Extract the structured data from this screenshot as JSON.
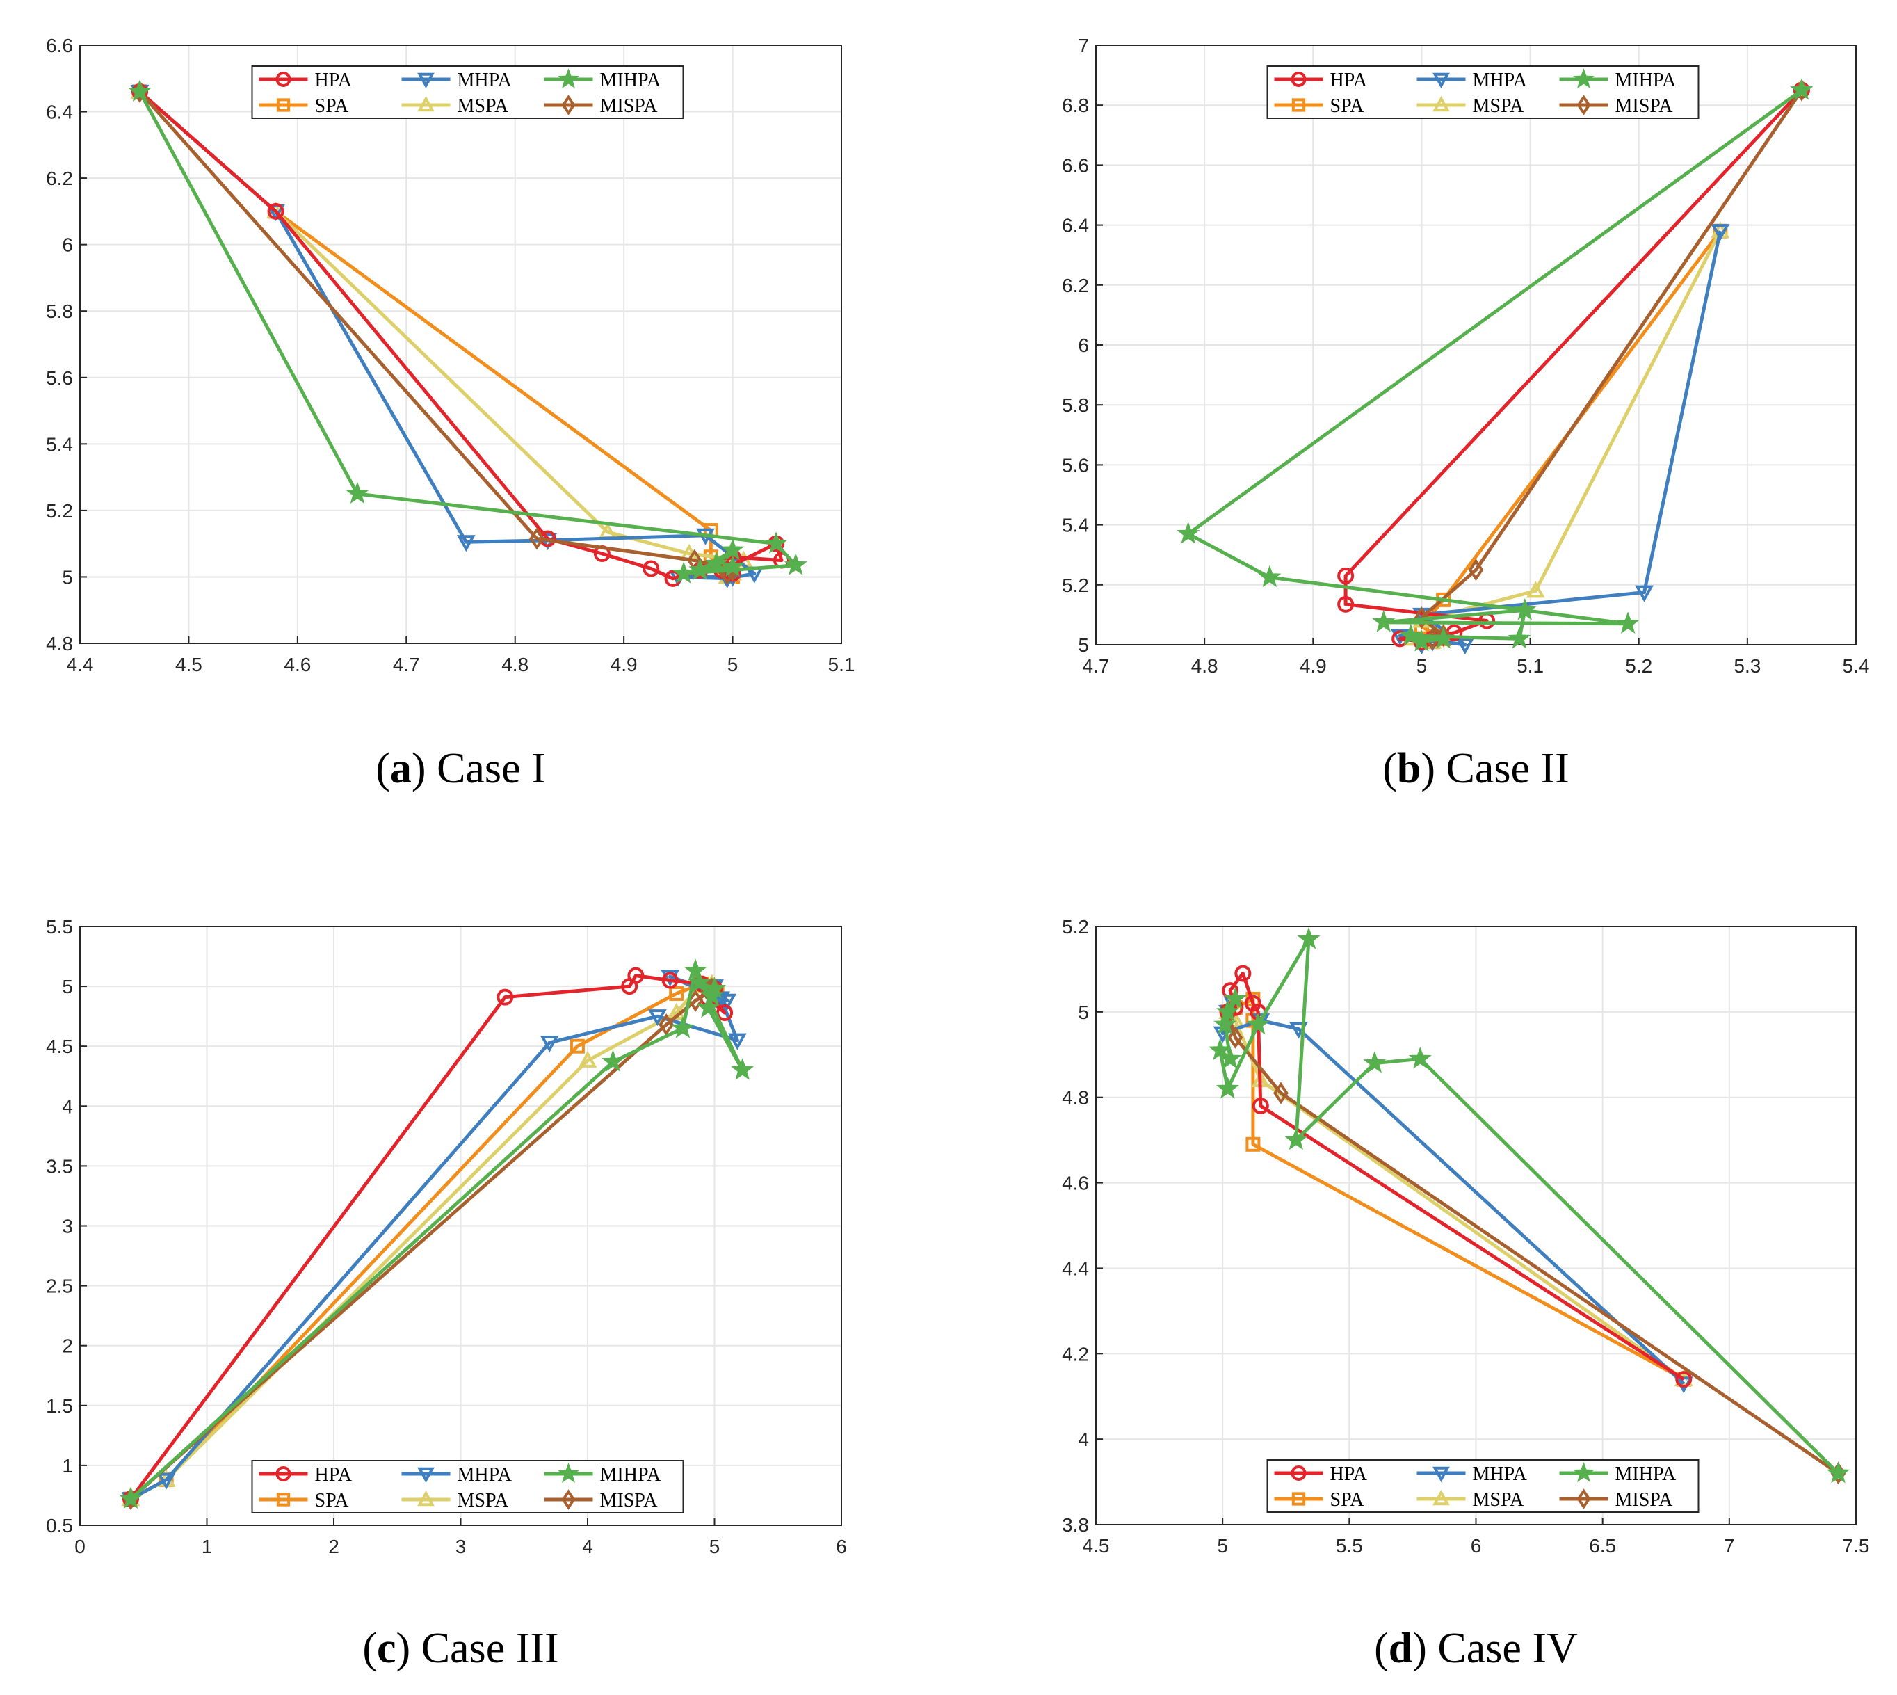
{
  "series_styles": [
    {
      "name": "HPA",
      "color": "#e3242b",
      "marker": "circle"
    },
    {
      "name": "SPA",
      "color": "#f28e1c",
      "marker": "square"
    },
    {
      "name": "MHPA",
      "color": "#3f7fbf",
      "marker": "triangle-down"
    },
    {
      "name": "MSPA",
      "color": "#ddd06a",
      "marker": "triangle-up"
    },
    {
      "name": "MIHPA",
      "color": "#55b04d",
      "marker": "star"
    },
    {
      "name": "MISPA",
      "color": "#a8602e",
      "marker": "diamond"
    }
  ],
  "chart_data": [
    {
      "type": "line",
      "caption": {
        "label": "a",
        "text": "Case I"
      },
      "xlim": [
        4.4,
        5.1
      ],
      "ylim": [
        4.8,
        6.6
      ],
      "xticks": [
        "4.4",
        "4.5",
        "4.6",
        "4.7",
        "4.8",
        "4.9",
        "5",
        "5.1"
      ],
      "yticks": [
        "4.8",
        "5",
        "5.2",
        "5.4",
        "5.6",
        "5.8",
        "6",
        "6.2",
        "6.4",
        "6.6"
      ],
      "grid": true,
      "legend": {
        "placement": "top-center",
        "entries": [
          "HPA",
          "MHPA",
          "MIHPA",
          "SPA",
          "MSPA",
          "MISPA"
        ]
      },
      "series": [
        {
          "name": "HPA",
          "x": [
            4.455,
            4.58,
            4.83,
            4.88,
            4.925,
            4.945,
            4.97,
            5.0,
            5.045,
            5.04,
            4.99,
            5.0
          ],
          "y": [
            6.46,
            6.1,
            5.115,
            5.07,
            5.025,
            4.995,
            5.02,
            5.06,
            5.05,
            5.1,
            5.02,
            5.01
          ]
        },
        {
          "name": "SPA",
          "x": [
            4.455,
            4.58,
            4.98,
            4.98,
            4.99,
            5.0,
            4.99,
            5.0
          ],
          "y": [
            6.46,
            6.1,
            5.14,
            5.06,
            5.03,
            5.0,
            5.02,
            5.01
          ]
        },
        {
          "name": "MHPA",
          "x": [
            4.455,
            4.58,
            4.755,
            4.83,
            4.975,
            5.02,
            4.995,
            4.95,
            5.0
          ],
          "y": [
            6.46,
            6.1,
            5.105,
            5.11,
            5.125,
            5.01,
            4.995,
            5.0,
            5.0
          ]
        },
        {
          "name": "MSPA",
          "x": [
            4.455,
            4.58,
            4.885,
            4.96,
            5.01,
            5.0,
            4.995,
            5.0
          ],
          "y": [
            6.46,
            6.1,
            5.135,
            5.07,
            5.05,
            5.02,
            5.0,
            5.01
          ]
        },
        {
          "name": "MIHPA",
          "x": [
            4.455,
            4.655,
            5.04,
            5.058,
            4.955,
            4.985,
            5.0,
            4.97,
            5.0
          ],
          "y": [
            6.46,
            5.25,
            5.1,
            5.035,
            5.01,
            5.04,
            5.08,
            5.02,
            5.03
          ]
        },
        {
          "name": "MISPA",
          "x": [
            4.455,
            4.82,
            4.965,
            4.99,
            5.0,
            4.995,
            5.0
          ],
          "y": [
            6.46,
            5.115,
            5.05,
            5.03,
            5.02,
            5.01,
            5.02
          ]
        }
      ]
    },
    {
      "type": "line",
      "caption": {
        "label": "b",
        "text": "Case II"
      },
      "xlim": [
        4.7,
        5.4
      ],
      "ylim": [
        5.0,
        7.0
      ],
      "xticks": [
        "4.7",
        "4.8",
        "4.9",
        "5",
        "5.1",
        "5.2",
        "5.3",
        "5.4"
      ],
      "yticks": [
        "5",
        "5.2",
        "5.4",
        "5.6",
        "5.8",
        "6",
        "6.2",
        "6.4",
        "6.6",
        "6.8",
        "7"
      ],
      "grid": true,
      "legend": {
        "placement": "top-center",
        "entries": [
          "HPA",
          "MHPA",
          "MIHPA",
          "SPA",
          "MSPA",
          "MISPA"
        ]
      },
      "series": [
        {
          "name": "HPA",
          "x": [
            5.35,
            4.93,
            4.93,
            5.06,
            5.03,
            4.98,
            5.0,
            5.01
          ],
          "y": [
            6.85,
            5.23,
            5.135,
            5.08,
            5.04,
            5.02,
            5.01,
            5.02
          ]
        },
        {
          "name": "SPA",
          "x": [
            5.275,
            5.02,
            5.0,
            5.02,
            5.01
          ],
          "y": [
            6.38,
            5.15,
            5.06,
            5.02,
            5.01
          ]
        },
        {
          "name": "MHPA",
          "x": [
            5.275,
            5.275,
            5.205,
            5.0,
            5.04,
            4.98,
            5.01,
            5.0
          ],
          "y": [
            6.38,
            6.38,
            5.175,
            5.1,
            5.0,
            5.03,
            5.01,
            5.0
          ]
        },
        {
          "name": "MSPA",
          "x": [
            5.275,
            5.105,
            5.0,
            5.02,
            4.99,
            5.01
          ],
          "y": [
            6.38,
            5.18,
            5.08,
            5.04,
            5.02,
            5.01
          ]
        },
        {
          "name": "MIHPA",
          "x": [
            5.35,
            4.785,
            4.86,
            5.19,
            4.965,
            5.095,
            5.09,
            4.99,
            5.0,
            5.02
          ],
          "y": [
            6.85,
            5.37,
            5.225,
            5.07,
            5.075,
            5.115,
            5.02,
            5.03,
            5.01,
            5.02
          ]
        },
        {
          "name": "MISPA",
          "x": [
            5.35,
            5.05,
            5.0,
            5.02,
            5.01
          ],
          "y": [
            6.85,
            5.25,
            5.09,
            5.03,
            5.02
          ]
        }
      ]
    },
    {
      "type": "line",
      "caption": {
        "label": "c",
        "text": "Case III"
      },
      "xlim": [
        0,
        6
      ],
      "ylim": [
        0.5,
        5.5
      ],
      "xticks": [
        "0",
        "1",
        "2",
        "3",
        "4",
        "5",
        "6"
      ],
      "yticks": [
        "0.5",
        "1",
        "1.5",
        "2",
        "2.5",
        "3",
        "3.5",
        "4",
        "4.5",
        "5",
        "5.5"
      ],
      "grid": true,
      "legend": {
        "placement": "bottom-center",
        "entries": [
          "HPA",
          "MHPA",
          "MIHPA",
          "SPA",
          "MSPA",
          "MISPA"
        ]
      },
      "series": [
        {
          "name": "HPA",
          "x": [
            0.4,
            3.35,
            4.33,
            4.38,
            4.65,
            4.9,
            5.08,
            4.95,
            5.0
          ],
          "y": [
            0.72,
            4.91,
            5.0,
            5.09,
            5.05,
            5.02,
            4.78,
            4.9,
            4.98
          ]
        },
        {
          "name": "SPA",
          "x": [
            0.4,
            0.68,
            3.92,
            4.7,
            4.9,
            5.02,
            4.97
          ],
          "y": [
            0.72,
            0.88,
            4.5,
            4.94,
            5.02,
            4.95,
            5.0
          ]
        },
        {
          "name": "MHPA",
          "x": [
            0.4,
            0.68,
            3.7,
            4.55,
            5.18,
            5.05,
            4.65,
            4.93,
            5.1,
            5.0
          ],
          "y": [
            0.72,
            0.88,
            4.53,
            4.75,
            4.55,
            4.9,
            5.08,
            4.98,
            4.88,
            5.0
          ]
        },
        {
          "name": "MSPA",
          "x": [
            0.4,
            0.68,
            4.0,
            4.7,
            4.88,
            5.0,
            4.98
          ],
          "y": [
            0.72,
            0.88,
            4.38,
            4.78,
            5.0,
            4.98,
            5.02
          ]
        },
        {
          "name": "MIHPA",
          "x": [
            0.4,
            4.2,
            4.75,
            4.85,
            5.22,
            4.95,
            5.0,
            4.88,
            4.98
          ],
          "y": [
            0.72,
            4.37,
            4.65,
            5.13,
            4.3,
            4.82,
            4.98,
            5.03,
            4.92
          ]
        },
        {
          "name": "MISPA",
          "x": [
            0.4,
            4.62,
            4.85,
            5.0,
            4.95,
            4.98
          ],
          "y": [
            0.72,
            4.68,
            4.88,
            4.98,
            4.96,
            4.98
          ]
        }
      ]
    },
    {
      "type": "line",
      "caption": {
        "label": "d",
        "text": "Case IV"
      },
      "xlim": [
        4.5,
        7.5
      ],
      "ylim": [
        3.8,
        5.2
      ],
      "xticks": [
        "4.5",
        "5",
        "5.5",
        "6",
        "6.5",
        "7",
        "7.5"
      ],
      "yticks": [
        "3.8",
        "4",
        "4.2",
        "4.4",
        "4.6",
        "4.8",
        "5",
        "5.2"
      ],
      "grid": true,
      "legend": {
        "placement": "bottom-center",
        "entries": [
          "HPA",
          "MHPA",
          "MIHPA",
          "SPA",
          "MSPA",
          "MISPA"
        ]
      },
      "series": [
        {
          "name": "HPA",
          "x": [
            6.82,
            5.15,
            5.14,
            5.12,
            5.08,
            5.03,
            5.05,
            5.02
          ],
          "y": [
            4.14,
            4.78,
            5.0,
            5.02,
            5.09,
            5.05,
            5.01,
            5.0
          ]
        },
        {
          "name": "SPA",
          "x": [
            6.82,
            5.12,
            5.12,
            5.12,
            5.05,
            5.02
          ],
          "y": [
            4.14,
            4.69,
            4.98,
            5.03,
            5.01,
            5.0
          ]
        },
        {
          "name": "MHPA",
          "x": [
            6.82,
            5.3,
            5.15,
            5.0,
            5.04,
            5.02
          ],
          "y": [
            4.13,
            4.96,
            4.98,
            4.95,
            5.02,
            5.0
          ]
        },
        {
          "name": "MSPA",
          "x": [
            6.82,
            5.15,
            5.05,
            5.02
          ],
          "y": [
            4.14,
            4.84,
            4.98,
            5.0
          ]
        },
        {
          "name": "MIHPA",
          "x": [
            7.43,
            5.78,
            5.6,
            5.29,
            5.34,
            5.14,
            5.02,
            4.99,
            5.03,
            5.01,
            5.05,
            5.02
          ],
          "y": [
            3.92,
            4.89,
            4.88,
            4.7,
            5.17,
            4.97,
            4.82,
            4.91,
            4.89,
            4.97,
            5.03,
            5.0
          ]
        },
        {
          "name": "MISPA",
          "x": [
            7.43,
            5.23,
            5.05,
            5.02
          ],
          "y": [
            3.92,
            4.81,
            4.94,
            5.0
          ]
        }
      ]
    }
  ]
}
